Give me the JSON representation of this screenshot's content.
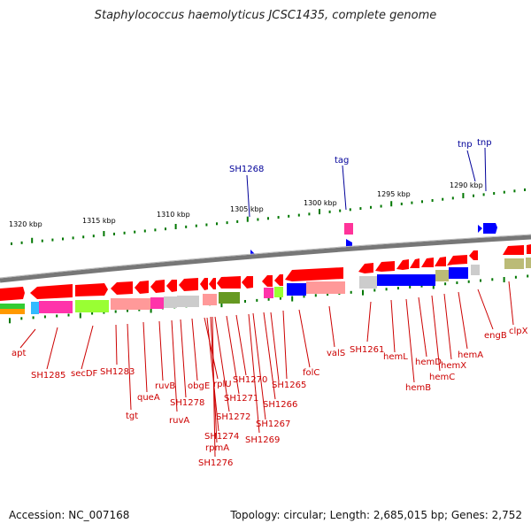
{
  "title": "Staphylococcus haemolyticus JCSC1435, complete genome",
  "accession": "Accession: NC_007168",
  "summary": "Topology: circular; Length: 2,685,015 bp; Genes: 2,752",
  "colors": {
    "forward_gene": "#ff0000",
    "reverse_gene": "#ff0000",
    "mobile": "#0000ff",
    "backbone": "#888888",
    "tick": "#007700",
    "label_red": "#cc0000",
    "label_blue": "#000099"
  },
  "kbp_labels": [
    "1320 kbp",
    "1315 kbp",
    "1310 kbp",
    "1305 kbp",
    "1300 kbp",
    "1295 kbp",
    "1290 kbp"
  ],
  "top_labels": [
    "SH1268",
    "tag",
    "tnp",
    "tnp"
  ],
  "gene_labels": [
    "apt",
    "SH1285",
    "secDF",
    "SH1283",
    "tgt",
    "queA",
    "ruvB",
    "ruvA",
    "SH1278",
    "obgE",
    "rplU",
    "SH1274",
    "rpmA",
    "SH1276",
    "SH1272",
    "SH1271",
    "SH1270",
    "SH1269",
    "SH1267",
    "SH1266",
    "SH1265",
    "folC",
    "valS",
    "SH1261",
    "hemL",
    "hemB",
    "hemD",
    "hemC",
    "hemX",
    "hemA",
    "engB",
    "clpX"
  ]
}
